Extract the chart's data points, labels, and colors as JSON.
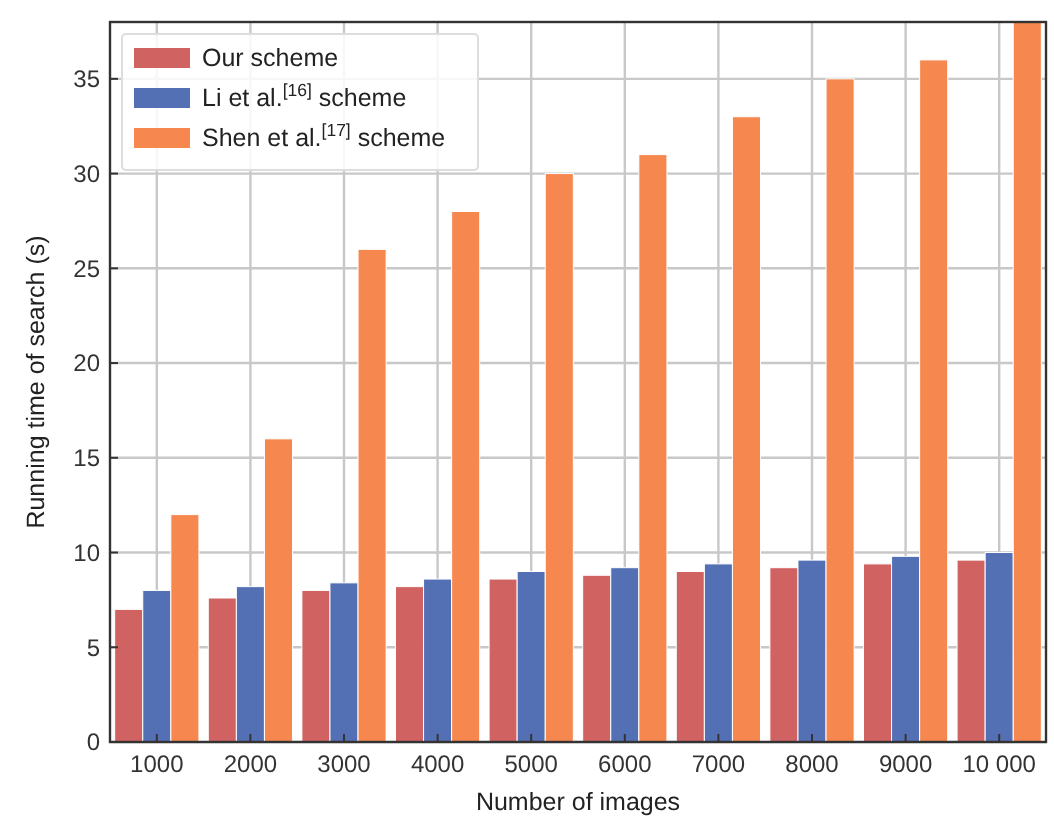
{
  "chart_data": {
    "type": "bar",
    "xlabel": "Number of images",
    "ylabel": "Running time of search (s)",
    "categories": [
      "1000",
      "2000",
      "3000",
      "4000",
      "5000",
      "6000",
      "7000",
      "8000",
      "9000",
      "10 000"
    ],
    "series": [
      {
        "name": "Our scheme",
        "color": "#d06262",
        "values": [
          7.0,
          7.6,
          8.0,
          8.2,
          8.6,
          8.8,
          9.0,
          9.2,
          9.4,
          9.6
        ]
      },
      {
        "name": "Li et al.$^{[16]}$ scheme",
        "color": "#5470b4",
        "values": [
          8.0,
          8.2,
          8.4,
          8.6,
          9.0,
          9.2,
          9.4,
          9.6,
          9.8,
          10.0
        ]
      },
      {
        "name": "Shen et al.$^{[17]}$ scheme",
        "color": "#f5874f",
        "values": [
          12,
          16,
          26,
          28,
          30,
          31,
          33,
          35,
          36,
          38
        ]
      }
    ],
    "ylim": [
      0,
      38
    ],
    "yticks": [
      0,
      5,
      10,
      15,
      20,
      25,
      30,
      35
    ],
    "grid": true,
    "legend": "top left"
  }
}
